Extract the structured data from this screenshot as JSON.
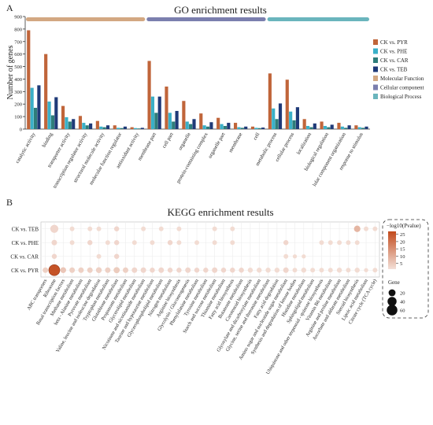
{
  "chart_data": [
    {
      "panel_label": "A",
      "type": "bar",
      "title": "GO enrichment results",
      "ylabel": "Number of genes",
      "ylim": [
        0,
        900
      ],
      "yticks": [
        0,
        100,
        200,
        300,
        400,
        500,
        600,
        700,
        800,
        900
      ],
      "categories": [
        "catalytic activity",
        "binding",
        "transporter activity",
        "transcription regulator activity",
        "structural molecule activity",
        "molecular function regulator",
        "antioxidant activity",
        "membrane part",
        "cell part",
        "organelle",
        "protein-containing complex",
        "organelle part",
        "membrane",
        "cell",
        "metabolic process",
        "cellular process",
        "localization",
        "biological regulation",
        "lular component organization",
        "response to stimulus"
      ],
      "groups": [
        {
          "name": "Molecular Function",
          "range": [
            0,
            6
          ],
          "color": "#d3a882"
        },
        {
          "name": "Cellular component",
          "range": [
            7,
            13
          ],
          "color": "#7b7fae"
        },
        {
          "name": "Biological Process",
          "range": [
            14,
            19
          ],
          "color": "#6ab5bd"
        }
      ],
      "series": [
        {
          "name": "CK vs. PYR",
          "color": "#c0653a",
          "values": [
            790,
            600,
            185,
            105,
            65,
            30,
            15,
            545,
            340,
            225,
            125,
            90,
            50,
            20,
            445,
            395,
            80,
            60,
            50,
            30
          ]
        },
        {
          "name": "CK vs. PHE",
          "color": "#3ab0c8",
          "values": [
            330,
            220,
            95,
            50,
            20,
            10,
            8,
            260,
            130,
            60,
            30,
            40,
            15,
            10,
            165,
            140,
            25,
            25,
            20,
            15
          ]
        },
        {
          "name": "CK vs. CAR",
          "color": "#2e7d7a",
          "values": [
            170,
            110,
            60,
            30,
            15,
            8,
            5,
            130,
            60,
            40,
            20,
            25,
            10,
            8,
            80,
            70,
            15,
            15,
            10,
            10
          ]
        },
        {
          "name": "CK vs. TEB",
          "color": "#1f3a78",
          "values": [
            350,
            255,
            80,
            45,
            30,
            20,
            10,
            260,
            145,
            80,
            55,
            50,
            20,
            12,
            205,
            175,
            45,
            35,
            30,
            20
          ]
        }
      ],
      "legend": {
        "placement": "right",
        "entries": [
          "CK vs. PYR",
          "CK vs. PHE",
          "CK vs. CAR",
          "CK vs. TEB",
          "Molecular Function",
          "Cellular component",
          "Biological Process"
        ]
      }
    },
    {
      "panel_label": "B",
      "type": "scatter",
      "title": "KEGG enrichment results",
      "rows": [
        "CK vs. TEB",
        "CK vs. PHE",
        "CK vs. CAR",
        "CK vs. PYR"
      ],
      "columns": [
        "ABC transporters",
        "Ribosome",
        "Basal transcription factors",
        "Methane metabolism",
        "beta - Alanine metabolism",
        "Pyruvate metabolism",
        "Valine, leucine and isoleucine degradation",
        "Tryptophan metabolism",
        "Glutathione metabolism",
        "Propanoate metabolism",
        "Glycerolipid metabolism",
        "Nicotinate and nicotinamide metabolism",
        "Taurine and hypotaurine metabolism",
        "Glycerophospholipid metabolism",
        "Nitrogen metabolism",
        "Arginine biosynthesis",
        "Glycolysis / Gluconeogenesis",
        "Phenylalanine metabolism",
        "Tyrosine metabolism",
        "Starch and sucrose metabolism",
        "Thiamine metabolism",
        "Fatty acid biosynthesis",
        "Butanoate metabolism",
        "Carotenoid biosynthesis",
        "Glyoxylate and dicarboxylate metabolism",
        "Glycine, serine and threonine metabolism",
        "Fatty acid degradation",
        "Amino sugar and nucleotide sugar metabolism",
        "Synthesis and degradation of ketone bodies",
        "Histidine metabolism",
        "Sphingolipid metabolism",
        "Ubiquinone and other terpenoid - quinone biosynthesis",
        "Vitamin B6 metabolism",
        "Arginine and proline metabolism",
        "Ascorbate and aldarate metabolism",
        "Steroid biosynthesis",
        "Lipoic acid metabolism",
        "Citrate cycle (TCA cycle)"
      ],
      "points": [
        {
          "row": 3,
          "col": 1,
          "gene": 65,
          "logp": 27
        },
        {
          "row": 0,
          "col": 1,
          "gene": 30,
          "logp": 3
        },
        {
          "row": 0,
          "col": 35,
          "gene": 16,
          "logp": 9
        },
        {
          "row": 3,
          "col": 0,
          "gene": 10,
          "logp": 4
        },
        {
          "row": 3,
          "col": 2,
          "gene": 12,
          "logp": 6
        },
        {
          "row": 3,
          "col": 3,
          "gene": 10,
          "logp": 4
        },
        {
          "row": 3,
          "col": 4,
          "gene": 10,
          "logp": 4
        },
        {
          "row": 3,
          "col": 5,
          "gene": 10,
          "logp": 4
        },
        {
          "row": 3,
          "col": 6,
          "gene": 12,
          "logp": 4
        },
        {
          "row": 3,
          "col": 7,
          "gene": 10,
          "logp": 4
        },
        {
          "row": 3,
          "col": 8,
          "gene": 14,
          "logp": 5
        },
        {
          "row": 3,
          "col": 9,
          "gene": 10,
          "logp": 4
        },
        {
          "row": 3,
          "col": 10,
          "gene": 10,
          "logp": 3
        },
        {
          "row": 3,
          "col": 11,
          "gene": 10,
          "logp": 3
        },
        {
          "row": 3,
          "col": 12,
          "gene": 8,
          "logp": 3
        },
        {
          "row": 3,
          "col": 13,
          "gene": 10,
          "logp": 3
        },
        {
          "row": 3,
          "col": 14,
          "gene": 8,
          "logp": 3
        },
        {
          "row": 3,
          "col": 15,
          "gene": 8,
          "logp": 3
        },
        {
          "row": 3,
          "col": 16,
          "gene": 10,
          "logp": 3
        },
        {
          "row": 3,
          "col": 17,
          "gene": 8,
          "logp": 3
        },
        {
          "row": 3,
          "col": 18,
          "gene": 8,
          "logp": 3
        },
        {
          "row": 3,
          "col": 19,
          "gene": 10,
          "logp": 3
        },
        {
          "row": 3,
          "col": 20,
          "gene": 8,
          "logp": 3
        },
        {
          "row": 3,
          "col": 21,
          "gene": 8,
          "logp": 3
        },
        {
          "row": 3,
          "col": 22,
          "gene": 8,
          "logp": 3
        },
        {
          "row": 3,
          "col": 23,
          "gene": 8,
          "logp": 2
        },
        {
          "row": 3,
          "col": 24,
          "gene": 8,
          "logp": 2
        },
        {
          "row": 3,
          "col": 25,
          "gene": 8,
          "logp": 2
        },
        {
          "row": 3,
          "col": 26,
          "gene": 8,
          "logp": 2
        },
        {
          "row": 3,
          "col": 27,
          "gene": 10,
          "logp": 3
        },
        {
          "row": 3,
          "col": 28,
          "gene": 6,
          "logp": 2
        },
        {
          "row": 3,
          "col": 29,
          "gene": 8,
          "logp": 2
        },
        {
          "row": 3,
          "col": 30,
          "gene": 6,
          "logp": 2
        },
        {
          "row": 3,
          "col": 31,
          "gene": 6,
          "logp": 2
        },
        {
          "row": 3,
          "col": 32,
          "gene": 6,
          "logp": 2
        },
        {
          "row": 3,
          "col": 33,
          "gene": 8,
          "logp": 2
        },
        {
          "row": 3,
          "col": 34,
          "gene": 6,
          "logp": 2
        },
        {
          "row": 3,
          "col": 35,
          "gene": 8,
          "logp": 2
        },
        {
          "row": 3,
          "col": 36,
          "gene": 4,
          "logp": 2
        },
        {
          "row": 3,
          "col": 37,
          "gene": 6,
          "logp": 2
        },
        {
          "row": 1,
          "col": 1,
          "gene": 10,
          "logp": 3
        },
        {
          "row": 1,
          "col": 3,
          "gene": 6,
          "logp": 2
        },
        {
          "row": 1,
          "col": 5,
          "gene": 8,
          "logp": 3
        },
        {
          "row": 1,
          "col": 7,
          "gene": 6,
          "logp": 2
        },
        {
          "row": 1,
          "col": 8,
          "gene": 8,
          "logp": 3
        },
        {
          "row": 1,
          "col": 10,
          "gene": 6,
          "logp": 2
        },
        {
          "row": 1,
          "col": 12,
          "gene": 6,
          "logp": 2
        },
        {
          "row": 1,
          "col": 14,
          "gene": 8,
          "logp": 3
        },
        {
          "row": 1,
          "col": 15,
          "gene": 6,
          "logp": 2
        },
        {
          "row": 1,
          "col": 17,
          "gene": 6,
          "logp": 2
        },
        {
          "row": 1,
          "col": 19,
          "gene": 6,
          "logp": 2
        },
        {
          "row": 1,
          "col": 21,
          "gene": 6,
          "logp": 2
        },
        {
          "row": 1,
          "col": 27,
          "gene": 8,
          "logp": 3
        },
        {
          "row": 1,
          "col": 31,
          "gene": 6,
          "logp": 2
        },
        {
          "row": 1,
          "col": 32,
          "gene": 6,
          "logp": 2
        },
        {
          "row": 1,
          "col": 33,
          "gene": 6,
          "logp": 2
        },
        {
          "row": 1,
          "col": 34,
          "gene": 6,
          "logp": 2
        },
        {
          "row": 1,
          "col": 35,
          "gene": 6,
          "logp": 2
        },
        {
          "row": 2,
          "col": 1,
          "gene": 8,
          "logp": 3
        },
        {
          "row": 2,
          "col": 6,
          "gene": 6,
          "logp": 2
        },
        {
          "row": 2,
          "col": 8,
          "gene": 8,
          "logp": 3
        },
        {
          "row": 2,
          "col": 27,
          "gene": 6,
          "logp": 2
        },
        {
          "row": 2,
          "col": 28,
          "gene": 4,
          "logp": 2
        },
        {
          "row": 2,
          "col": 29,
          "gene": 4,
          "logp": 2
        },
        {
          "row": 0,
          "col": 3,
          "gene": 6,
          "logp": 2
        },
        {
          "row": 0,
          "col": 5,
          "gene": 6,
          "logp": 2
        },
        {
          "row": 0,
          "col": 6,
          "gene": 6,
          "logp": 2
        },
        {
          "row": 0,
          "col": 8,
          "gene": 8,
          "logp": 3
        },
        {
          "row": 0,
          "col": 11,
          "gene": 6,
          "logp": 2
        },
        {
          "row": 0,
          "col": 13,
          "gene": 6,
          "logp": 2
        },
        {
          "row": 0,
          "col": 15,
          "gene": 6,
          "logp": 2
        },
        {
          "row": 0,
          "col": 19,
          "gene": 6,
          "logp": 2
        },
        {
          "row": 0,
          "col": 21,
          "gene": 6,
          "logp": 2
        },
        {
          "row": 0,
          "col": 36,
          "gene": 6,
          "logp": 2
        },
        {
          "row": 0,
          "col": 37,
          "gene": 6,
          "logp": 2
        }
      ],
      "color_legend": {
        "title": "−log10(Pvalue)",
        "ticks": [
          5,
          10,
          15,
          20,
          25
        ],
        "range": [
          1,
          27
        ],
        "low_color": "#f3e0d8",
        "high_color": "#c24a1c"
      },
      "size_legend": {
        "title": "Gene",
        "ticks": [
          20,
          40,
          60
        ]
      }
    }
  ]
}
